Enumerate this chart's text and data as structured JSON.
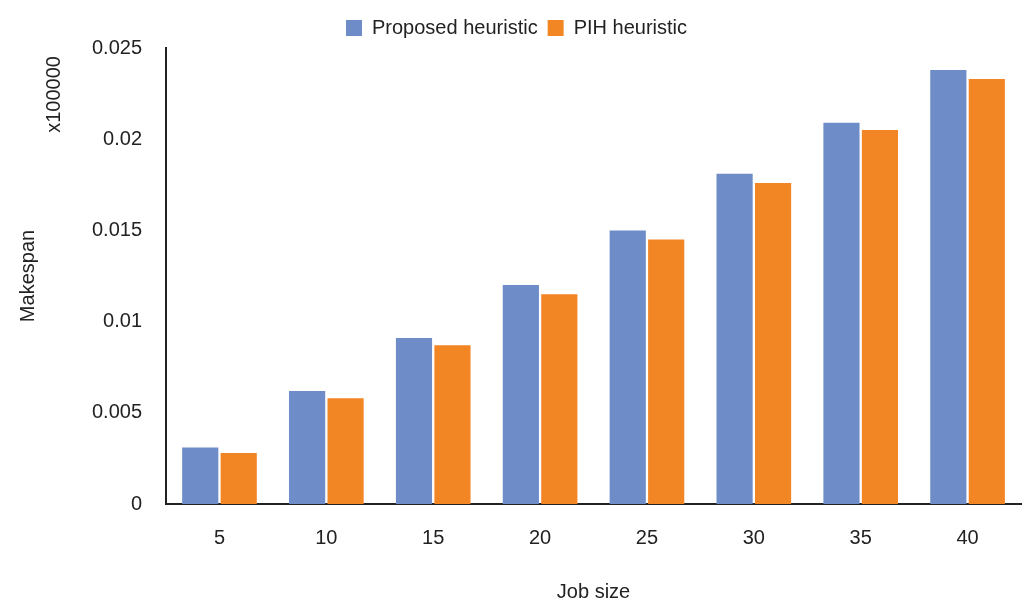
{
  "chart_data": {
    "type": "bar",
    "xlabel": "Job size",
    "ylabel": "Makespan",
    "annotations": [
      "x100000"
    ],
    "categories": [
      "5",
      "10",
      "15",
      "20",
      "25",
      "30",
      "35",
      "40"
    ],
    "series": [
      {
        "name": "Proposed heuristic",
        "color": "#6d8cc8",
        "values": [
          0.0031,
          0.0062,
          0.0091,
          0.012,
          0.015,
          0.0181,
          0.0209,
          0.0238
        ]
      },
      {
        "name": "PIH heuristic",
        "color": "#f28524",
        "values": [
          0.0028,
          0.0058,
          0.0087,
          0.0115,
          0.0145,
          0.0176,
          0.0205,
          0.0233
        ]
      }
    ],
    "ylim": [
      0,
      0.025
    ],
    "yticks": [
      0,
      0.005,
      0.01,
      0.015,
      0.02,
      0.025
    ],
    "grid": false,
    "legend": "top"
  }
}
